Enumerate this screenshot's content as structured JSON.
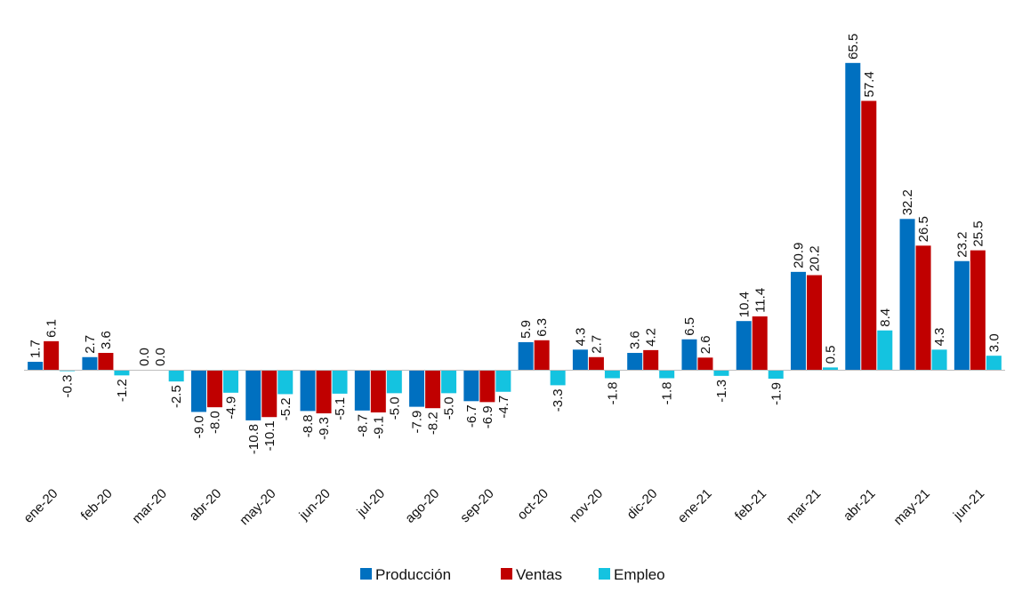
{
  "chart_data": {
    "type": "bar",
    "title": "",
    "xlabel": "",
    "ylabel": "",
    "ylim": [
      -12,
      68
    ],
    "grid": false,
    "legend_position": "bottom",
    "categories": [
      "ene-20",
      "feb-20",
      "mar-20",
      "abr-20",
      "may-20",
      "jun-20",
      "jul-20",
      "ago-20",
      "sep-20",
      "oct-20",
      "nov-20",
      "dic-20",
      "ene-21",
      "feb-21",
      "mar-21",
      "abr-21",
      "may-21",
      "jun-21"
    ],
    "series": [
      {
        "name": "Producción",
        "color": "#0070C0",
        "values": [
          1.7,
          2.7,
          0.0,
          -9.0,
          -10.8,
          -8.8,
          -8.7,
          -7.9,
          -6.7,
          5.9,
          4.3,
          3.6,
          6.5,
          10.4,
          20.9,
          65.5,
          32.2,
          23.2
        ],
        "labels": [
          "1.7",
          "2.7",
          "0.0",
          "-9.0",
          "-10.8",
          "-8.8",
          "-8.7",
          "-7.9",
          "-6.7",
          "5.9",
          "4.3",
          "3.6",
          "6.5",
          "10.4",
          "20.9",
          "65.5",
          "32.2",
          "23.2"
        ]
      },
      {
        "name": "Ventas",
        "color": "#C00000",
        "values": [
          6.1,
          3.6,
          0.0,
          -8.0,
          -10.1,
          -9.3,
          -9.1,
          -8.2,
          -6.9,
          6.3,
          2.7,
          4.2,
          2.6,
          11.4,
          20.2,
          57.4,
          26.5,
          25.5
        ],
        "labels": [
          "6.1",
          "3.6",
          "0.0",
          "-8.0",
          "-10.1",
          "-9.3",
          "-9.1",
          "-8.2",
          "-6.9",
          "6.3",
          "2.7",
          "4.2",
          "2.6",
          "11.4",
          "20.2",
          "57.4",
          "26.5",
          "25.5"
        ]
      },
      {
        "name": "Empleo",
        "color": "#14C3E0",
        "values": [
          -0.3,
          -1.2,
          -2.5,
          -4.9,
          -5.2,
          -5.1,
          -5.0,
          -5.0,
          -4.7,
          -3.3,
          -1.8,
          -1.8,
          -1.3,
          -1.9,
          0.5,
          8.4,
          4.3,
          3.0
        ],
        "labels": [
          "-0.3",
          "-1.2",
          "-2.5",
          "-4.9",
          "-5.2",
          "-5.1",
          "-5.0",
          "-5.0",
          "-4.7",
          "-3.3",
          "-1.8",
          "-1.8",
          "-1.3",
          "-1.9",
          "0.5",
          "8.4",
          "4.3",
          "3.0"
        ]
      }
    ]
  }
}
